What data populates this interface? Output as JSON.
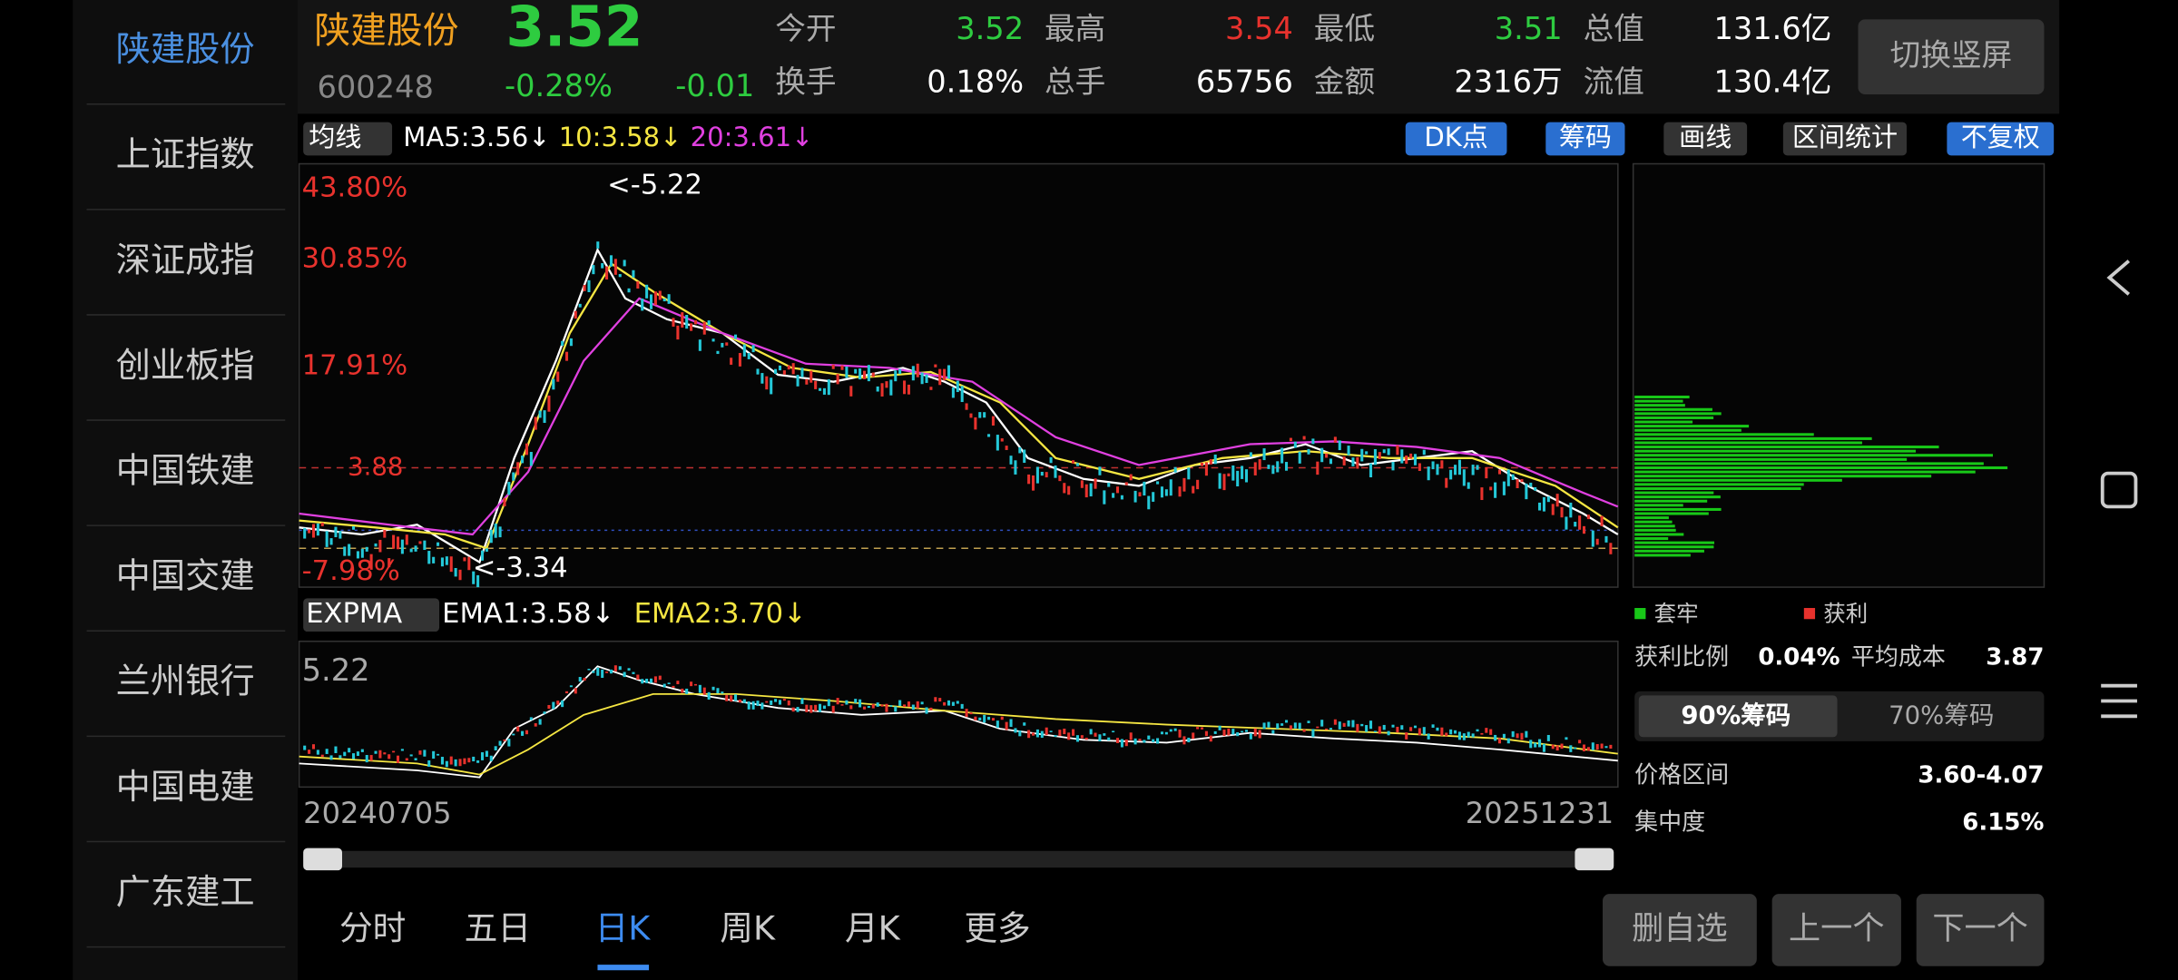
{
  "sidebar": {
    "items": [
      "陕建股份",
      "上证指数",
      "深证成指",
      "创业板指",
      "中国铁建",
      "中国交建",
      "兰州银行",
      "中国电建",
      "广东建工"
    ]
  },
  "header": {
    "name": "陕建股份",
    "price": "3.52",
    "code": "600248",
    "change_pct": "-0.28%",
    "change": "-0.01",
    "stats": [
      {
        "label": "今开",
        "value": "3.52",
        "color": "#2ecc40"
      },
      {
        "label": "最高",
        "value": "3.54",
        "color": "#e8322d"
      },
      {
        "label": "最低",
        "value": "3.51",
        "color": "#2ecc40"
      },
      {
        "label": "总值",
        "value": "131.6亿",
        "color": "#ffffff"
      },
      {
        "label": "换手",
        "value": "0.18%",
        "color": "#ffffff"
      },
      {
        "label": "总手",
        "value": "65756",
        "color": "#ffffff"
      },
      {
        "label": "金额",
        "value": "2316万",
        "color": "#ffffff"
      },
      {
        "label": "流值",
        "value": "130.4亿",
        "color": "#ffffff"
      }
    ],
    "button": "切换竖屏"
  },
  "toolbar": {
    "indicator": "均线",
    "ma": [
      {
        "text": "MA5:3.56↓",
        "color": "#ffffff"
      },
      {
        "text": "10:3.58↓",
        "color": "#f5e642"
      },
      {
        "text": "20:3.61↓",
        "color": "#e040e0"
      }
    ],
    "buttons": [
      {
        "text": "DK点",
        "color": "#2a6fd0"
      },
      {
        "text": "筹码",
        "color": "#2a6fd0"
      },
      {
        "text": "画线",
        "color": "#333333"
      },
      {
        "text": "区间统计",
        "color": "#333333"
      },
      {
        "text": "不复权",
        "color": "#2a6fd0"
      }
    ]
  },
  "main_chart": {
    "axis_labels": [
      "43.80%",
      "30.85%",
      "17.91%",
      "-7.98%"
    ],
    "price_line": "3.88",
    "high_note": "<-5.22",
    "low_note": "<-3.34"
  },
  "sub_chart": {
    "indicator": "EXPMA",
    "ema": [
      {
        "text": "EMA1:3.58↓",
        "color": "#ffffff"
      },
      {
        "text": "EMA2:3.70↓",
        "color": "#f5e642"
      }
    ],
    "top_label": "5.22",
    "start_date": "20240705",
    "end_date": "20251231"
  },
  "chip_panel": {
    "legend": [
      "套牢",
      "获利"
    ],
    "profit_ratio_label": "获利比例",
    "profit_ratio": "0.04%",
    "avg_cost_label": "平均成本",
    "avg_cost": "3.87",
    "tabs": [
      "90%筹码",
      "70%筹码"
    ],
    "range_label": "价格区间",
    "range": "3.60-4.07",
    "concentration_label": "集中度",
    "concentration": "6.15%"
  },
  "bottom_tabs": {
    "items": [
      "分时",
      "五日",
      "日K",
      "周K",
      "月K",
      "更多"
    ],
    "selected": 2
  },
  "actions": [
    "删自选",
    "上一个",
    "下一个"
  ]
}
